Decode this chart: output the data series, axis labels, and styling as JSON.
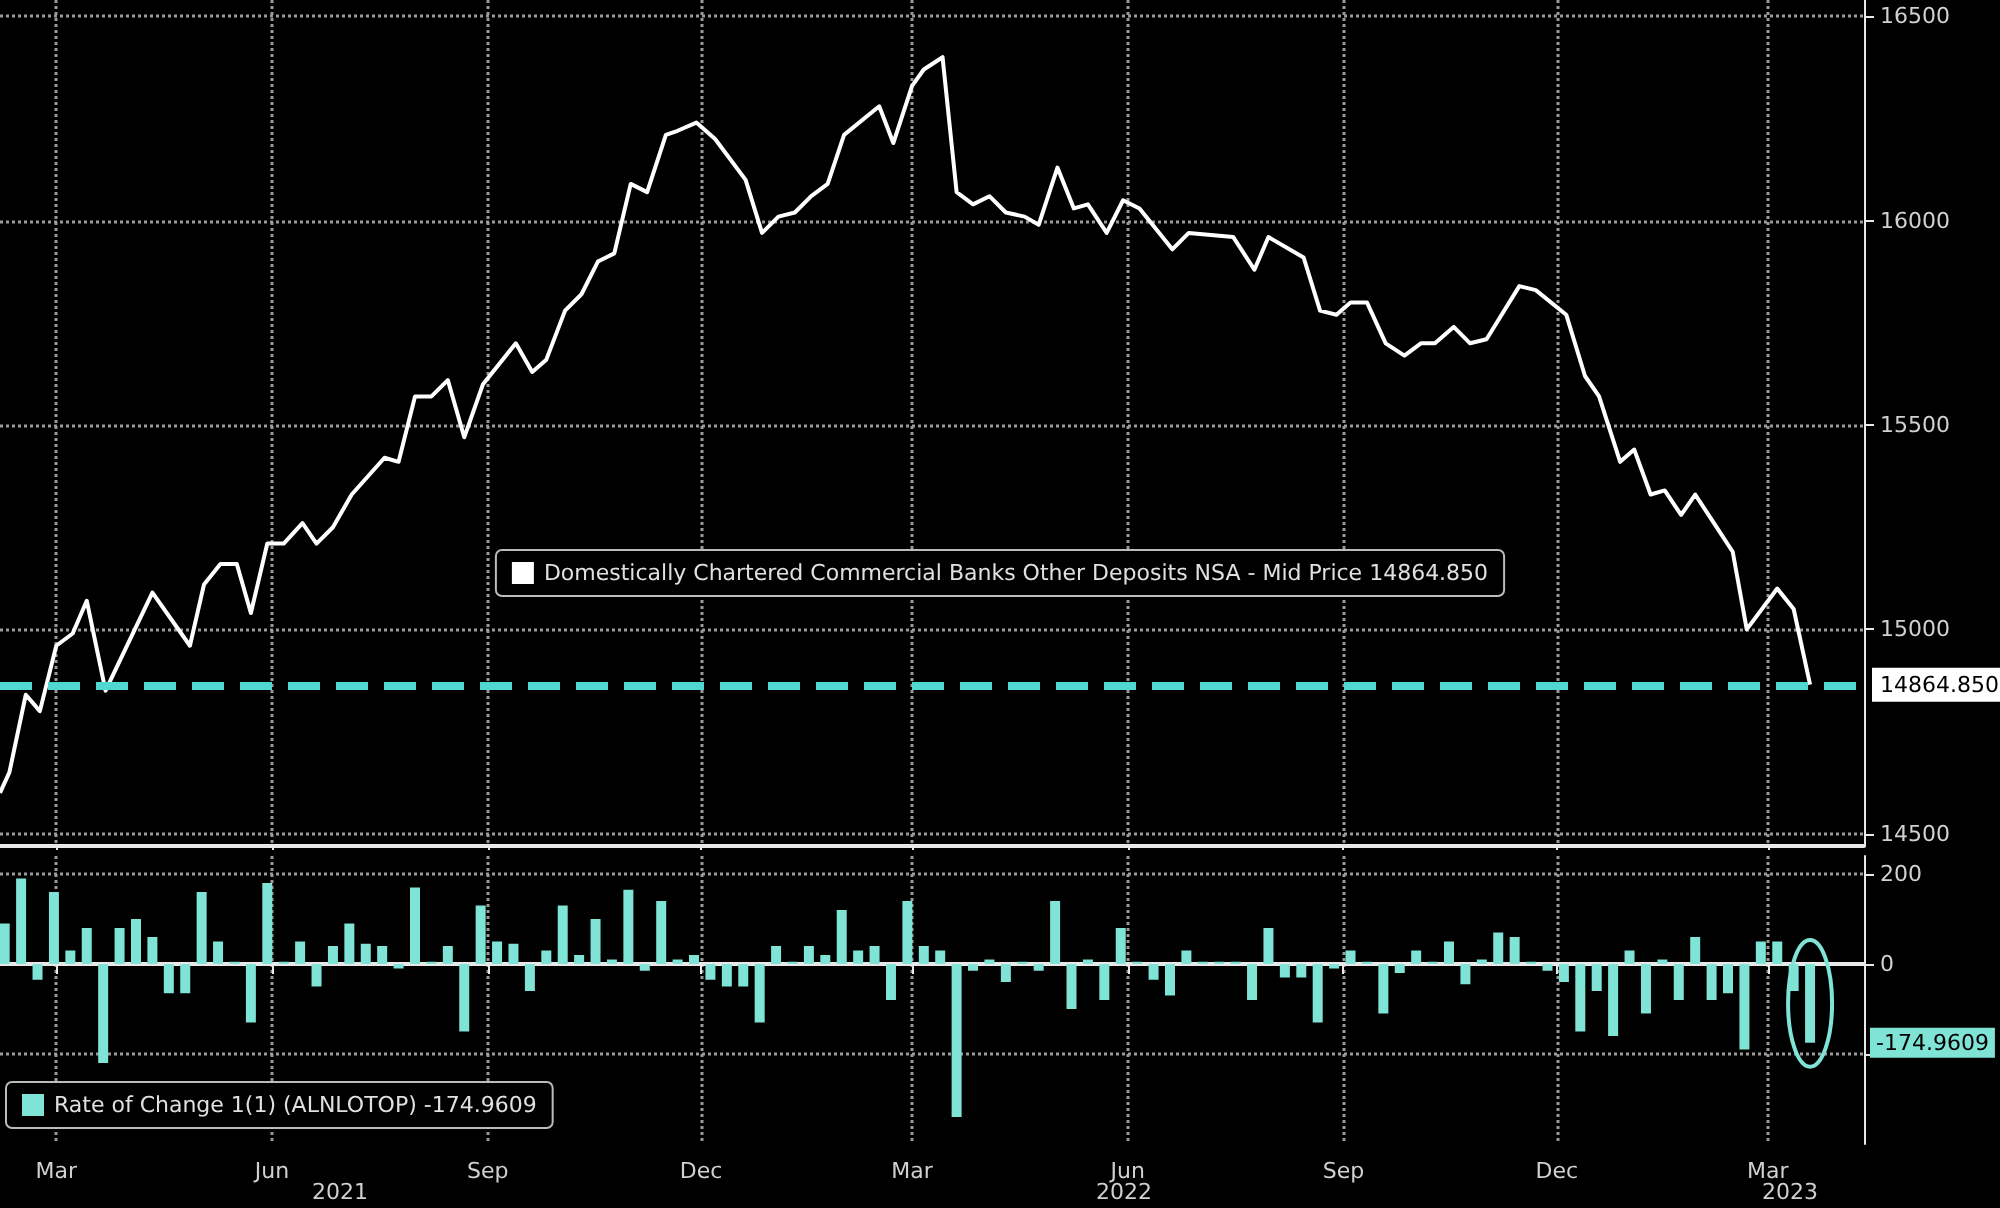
{
  "chart_data": [
    {
      "type": "line",
      "x": [
        "2021-02-05",
        "2021-02-09",
        "2021-02-16",
        "2021-02-22",
        "2021-03-01",
        "2021-03-08",
        "2021-03-14",
        "2021-03-22",
        "2021-04-11",
        "2021-04-27",
        "2021-05-03",
        "2021-05-10",
        "2021-05-17",
        "2021-05-23",
        "2021-05-30",
        "2021-06-06",
        "2021-06-14",
        "2021-06-20",
        "2021-06-27",
        "2021-07-05",
        "2021-07-19",
        "2021-07-25",
        "2021-08-01",
        "2021-08-08",
        "2021-08-15",
        "2021-08-22",
        "2021-08-30",
        "2021-09-13",
        "2021-09-20",
        "2021-09-26",
        "2021-10-04",
        "2021-10-11",
        "2021-10-18",
        "2021-10-25",
        "2021-11-01",
        "2021-11-08",
        "2021-11-16",
        "2021-11-21",
        "2021-11-29",
        "2021-12-07",
        "2021-12-20",
        "2021-12-27",
        "2022-01-03",
        "2022-01-10",
        "2022-01-17",
        "2022-01-24",
        "2022-01-31",
        "2022-02-15",
        "2022-02-21",
        "2022-03-01",
        "2022-03-06",
        "2022-03-14",
        "2022-03-20",
        "2022-03-27",
        "2022-04-03",
        "2022-04-10",
        "2022-04-18",
        "2022-04-24",
        "2022-05-02",
        "2022-05-09",
        "2022-05-15",
        "2022-05-23",
        "2022-05-30",
        "2022-06-06",
        "2022-06-20",
        "2022-06-27",
        "2022-07-16",
        "2022-07-25",
        "2022-07-31",
        "2022-08-15",
        "2022-08-22",
        "2022-08-29",
        "2022-09-04",
        "2022-09-11",
        "2022-09-19",
        "2022-09-27",
        "2022-10-04",
        "2022-10-10",
        "2022-10-18",
        "2022-10-25",
        "2022-11-01",
        "2022-11-15",
        "2022-11-22",
        "2022-12-05",
        "2022-12-13",
        "2022-12-19",
        "2022-12-28",
        "2023-01-03",
        "2023-01-10",
        "2023-01-16",
        "2023-01-23",
        "2023-01-29",
        "2023-02-06",
        "2023-02-14",
        "2023-02-20",
        "2023-03-05",
        "2023-03-12",
        "2023-03-19"
      ],
      "series": [
        {
          "name": "Domestically Chartered Commercial Banks Other Deposits NSA - Mid Price 14864.850",
          "color": "#ffffff",
          "values": [
            14600,
            14650,
            14840,
            14800,
            14960,
            14990,
            15070,
            14850,
            15090,
            14960,
            15110,
            15160,
            15160,
            15040,
            15210,
            15210,
            15260,
            15210,
            15250,
            15330,
            15420,
            15410,
            15570,
            15570,
            15610,
            15470,
            15600,
            15700,
            15630,
            15660,
            15780,
            15820,
            15900,
            15920,
            16090,
            16070,
            16210,
            16220,
            16240,
            16200,
            16100,
            15970,
            16010,
            16020,
            16060,
            16090,
            16210,
            16280,
            16190,
            16330,
            16370,
            16400,
            16070,
            16040,
            16060,
            16020,
            16010,
            15990,
            16130,
            16030,
            16040,
            15970,
            16050,
            16030,
            15930,
            15970,
            15960,
            15880,
            15960,
            15910,
            15780,
            15770,
            15800,
            15800,
            15700,
            15670,
            15700,
            15700,
            15740,
            15700,
            15710,
            15840,
            15830,
            15770,
            15620,
            15570,
            15410,
            15440,
            15330,
            15340,
            15280,
            15330,
            15260,
            15190,
            15000,
            15100,
            15050,
            14864.85
          ]
        }
      ],
      "xlim": [
        "2021-02-05",
        "2023-04-11"
      ],
      "xticks": [
        {
          "value": "2021-03-01",
          "label": null
        },
        {
          "value": "2021-06-01",
          "label": null
        },
        {
          "value": "2021-09-01",
          "label": null
        },
        {
          "value": "2021-12-01",
          "label": null
        },
        {
          "value": "2022-03-01",
          "label": null
        },
        {
          "value": "2022-06-01",
          "label": null
        },
        {
          "value": "2022-09-01",
          "label": null
        },
        {
          "value": "2022-12-01",
          "label": null
        },
        {
          "value": "2023-03-01",
          "label": null
        }
      ],
      "ylim": [
        14470,
        16540
      ],
      "yticks": [
        14500,
        15000,
        15500,
        16000,
        16500
      ],
      "grid": true,
      "legend": "bottom",
      "marker": "none",
      "tick_labels": "y",
      "ref_lines": [
        {
          "axis": "y",
          "value": 14864.85,
          "label": "14864.850",
          "color": "#4fd8d0",
          "line_style": "dashed"
        }
      ]
    },
    {
      "type": "bar",
      "x": [
        "2021-02-07",
        "2021-02-14",
        "2021-02-21",
        "2021-02-28",
        "2021-03-07",
        "2021-03-14",
        "2021-03-21",
        "2021-03-28",
        "2021-04-04",
        "2021-04-11",
        "2021-04-18",
        "2021-04-25",
        "2021-05-02",
        "2021-05-09",
        "2021-05-16",
        "2021-05-23",
        "2021-05-30",
        "2021-06-06",
        "2021-06-13",
        "2021-06-20",
        "2021-06-27",
        "2021-07-04",
        "2021-07-11",
        "2021-07-18",
        "2021-07-25",
        "2021-08-01",
        "2021-08-08",
        "2021-08-15",
        "2021-08-22",
        "2021-08-29",
        "2021-09-05",
        "2021-09-12",
        "2021-09-19",
        "2021-09-26",
        "2021-10-03",
        "2021-10-10",
        "2021-10-17",
        "2021-10-24",
        "2021-10-31",
        "2021-11-07",
        "2021-11-14",
        "2021-11-21",
        "2021-11-28",
        "2021-12-05",
        "2021-12-12",
        "2021-12-19",
        "2021-12-26",
        "2022-01-02",
        "2022-01-09",
        "2022-01-16",
        "2022-01-23",
        "2022-01-30",
        "2022-02-06",
        "2022-02-13",
        "2022-02-20",
        "2022-02-27",
        "2022-03-06",
        "2022-03-13",
        "2022-03-20",
        "2022-03-27",
        "2022-04-03",
        "2022-04-10",
        "2022-04-17",
        "2022-04-24",
        "2022-05-01",
        "2022-05-08",
        "2022-05-15",
        "2022-05-22",
        "2022-05-29",
        "2022-06-05",
        "2022-06-12",
        "2022-06-19",
        "2022-06-26",
        "2022-07-03",
        "2022-07-10",
        "2022-07-17",
        "2022-07-24",
        "2022-07-31",
        "2022-08-07",
        "2022-08-14",
        "2022-08-21",
        "2022-08-28",
        "2022-09-04",
        "2022-09-11",
        "2022-09-18",
        "2022-09-25",
        "2022-10-02",
        "2022-10-09",
        "2022-10-16",
        "2022-10-23",
        "2022-10-30",
        "2022-11-06",
        "2022-11-13",
        "2022-11-20",
        "2022-11-27",
        "2022-12-04",
        "2022-12-11",
        "2022-12-18",
        "2022-12-25",
        "2023-01-01",
        "2023-01-08",
        "2023-01-15",
        "2023-01-22",
        "2023-01-29",
        "2023-02-05",
        "2023-02-12",
        "2023-02-19",
        "2023-02-26",
        "2023-03-05",
        "2023-03-12",
        "2023-03-19"
      ],
      "series": [
        {
          "name": "Rate of Change 1(1) (ALNLOTOP) -174.9609",
          "color": "#7fe3d6",
          "values": [
            90,
            190,
            -35,
            160,
            30,
            80,
            -220,
            80,
            100,
            60,
            -65,
            -65,
            160,
            50,
            5,
            -130,
            180,
            5,
            50,
            -50,
            40,
            90,
            45,
            40,
            -10,
            170,
            5,
            40,
            -150,
            130,
            50,
            45,
            -60,
            30,
            130,
            20,
            100,
            10,
            165,
            -15,
            140,
            10,
            20,
            -35,
            -50,
            -50,
            -130,
            40,
            5,
            40,
            20,
            120,
            30,
            40,
            -80,
            140,
            40,
            30,
            -340,
            -15,
            10,
            -40,
            5,
            -15,
            140,
            -100,
            10,
            -80,
            80,
            5,
            -35,
            -70,
            30,
            5,
            5,
            5,
            -80,
            80,
            -30,
            -30,
            -130,
            -10,
            30,
            5,
            -110,
            -20,
            30,
            5,
            50,
            -45,
            10,
            70,
            60,
            5,
            -15,
            -40,
            -150,
            -60,
            -160,
            30,
            -110,
            10,
            -80,
            60,
            -80,
            -65,
            -190,
            50,
            50,
            -60,
            -174.9609
          ]
        }
      ],
      "xlim": [
        "2021-02-05",
        "2023-04-11"
      ],
      "xticks": [
        {
          "value": "2021-03-01",
          "label": "Mar"
        },
        {
          "value": "2021-06-01",
          "label": "Jun"
        },
        {
          "value": "2021-09-01",
          "label": "Sep"
        },
        {
          "value": "2021-12-01",
          "label": "Dec"
        },
        {
          "value": "2022-03-01",
          "label": "Mar"
        },
        {
          "value": "2022-06-01",
          "label": "Jun"
        },
        {
          "value": "2022-09-01",
          "label": "Sep"
        },
        {
          "value": "2022-12-01",
          "label": "Dec"
        },
        {
          "value": "2023-03-01",
          "label": "Mar"
        }
      ],
      "ylim": [
        -400,
        240
      ],
      "yticks": [
        {
          "value": -200,
          "label": null
        },
        0,
        200
      ],
      "grid": true,
      "legend": "bottom left",
      "annotations": [
        {
          "text": "-174.9609",
          "x": "2023-03-19",
          "y": -174.9609
        },
        "2021",
        "2022",
        "2023"
      ]
    }
  ]
}
